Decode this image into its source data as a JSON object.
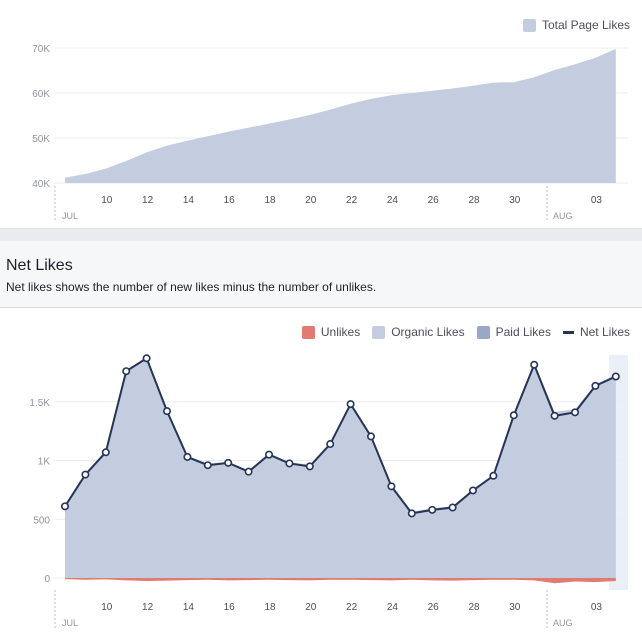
{
  "chart_data": [
    {
      "type": "area",
      "title": "",
      "legend": [
        "Total Page Likes"
      ],
      "series": [
        {
          "name": "Total Page Likes",
          "color": "#c4cce0",
          "values": [
            41200,
            42000,
            43200,
            44900,
            46800,
            48300,
            49400,
            50400,
            51400,
            52300,
            53200,
            54100,
            55100,
            56300,
            57600,
            58700,
            59500,
            60000,
            60500,
            61000,
            61600,
            62300,
            62400,
            63500,
            65100,
            66400,
            67800,
            69800
          ]
        }
      ],
      "x": [
        8,
        9,
        10,
        11,
        12,
        13,
        14,
        15,
        16,
        17,
        18,
        19,
        20,
        21,
        22,
        23,
        24,
        25,
        26,
        27,
        28,
        29,
        30,
        31,
        1,
        2,
        3,
        4
      ],
      "xtick_labels": [
        "10",
        "12",
        "14",
        "16",
        "18",
        "20",
        "22",
        "24",
        "26",
        "28",
        "30",
        "03"
      ],
      "month_labels": [
        "JUL",
        "AUG"
      ],
      "yticks": [
        "40K",
        "50K",
        "60K",
        "70K"
      ],
      "ylim": [
        40000,
        70000
      ]
    },
    {
      "type": "line",
      "title": "Net Likes",
      "legend": [
        "Unlikes",
        "Organic Likes",
        "Paid Likes",
        "Net Likes"
      ],
      "x": [
        8,
        9,
        10,
        11,
        12,
        13,
        14,
        15,
        16,
        17,
        18,
        19,
        20,
        21,
        22,
        23,
        24,
        25,
        26,
        27,
        28,
        29,
        30,
        31,
        1,
        2,
        3,
        4
      ],
      "series": [
        {
          "name": "Unlikes",
          "color": "#e07a73",
          "values": [
            -10,
            -15,
            -12,
            -20,
            -25,
            -22,
            -18,
            -15,
            -20,
            -18,
            -15,
            -18,
            -20,
            -15,
            -15,
            -18,
            -20,
            -15,
            -20,
            -22,
            -18,
            -15,
            -15,
            -20,
            -45,
            -30,
            -35,
            -25
          ]
        },
        {
          "name": "Organic Likes",
          "color": "#c4cce0",
          "values": [
            620,
            895,
            1085,
            1770,
            1880,
            1430,
            1040,
            975,
            990,
            915,
            1065,
            985,
            965,
            1150,
            1495,
            1215,
            795,
            565,
            595,
            610,
            755,
            880,
            1395,
            1830,
            1415,
            1435,
            1650,
            1730
          ]
        },
        {
          "name": "Paid Likes",
          "color": "#9aa7c7",
          "values": [
            0,
            0,
            0,
            0,
            0,
            0,
            0,
            0,
            0,
            0,
            0,
            0,
            0,
            0,
            0,
            0,
            0,
            0,
            0,
            0,
            0,
            0,
            0,
            0,
            0,
            0,
            0,
            0
          ]
        },
        {
          "name": "Net Likes",
          "color": "#253457",
          "values": [
            610,
            880,
            1070,
            1760,
            1870,
            1420,
            1030,
            960,
            980,
            905,
            1050,
            975,
            950,
            1140,
            1480,
            1205,
            780,
            550,
            580,
            600,
            745,
            870,
            1385,
            1815,
            1380,
            1410,
            1635,
            1715
          ]
        }
      ],
      "xtick_labels": [
        "10",
        "12",
        "14",
        "16",
        "18",
        "20",
        "22",
        "24",
        "26",
        "28",
        "30",
        "03"
      ],
      "month_labels": [
        "JUL",
        "AUG"
      ],
      "yticks": [
        "0",
        "500",
        "1K",
        "1.5K"
      ],
      "ylim": [
        0,
        2000
      ]
    }
  ],
  "netlikes": {
    "title": "Net Likes",
    "description": "Net likes shows the number of new likes minus the number of unlikes."
  }
}
